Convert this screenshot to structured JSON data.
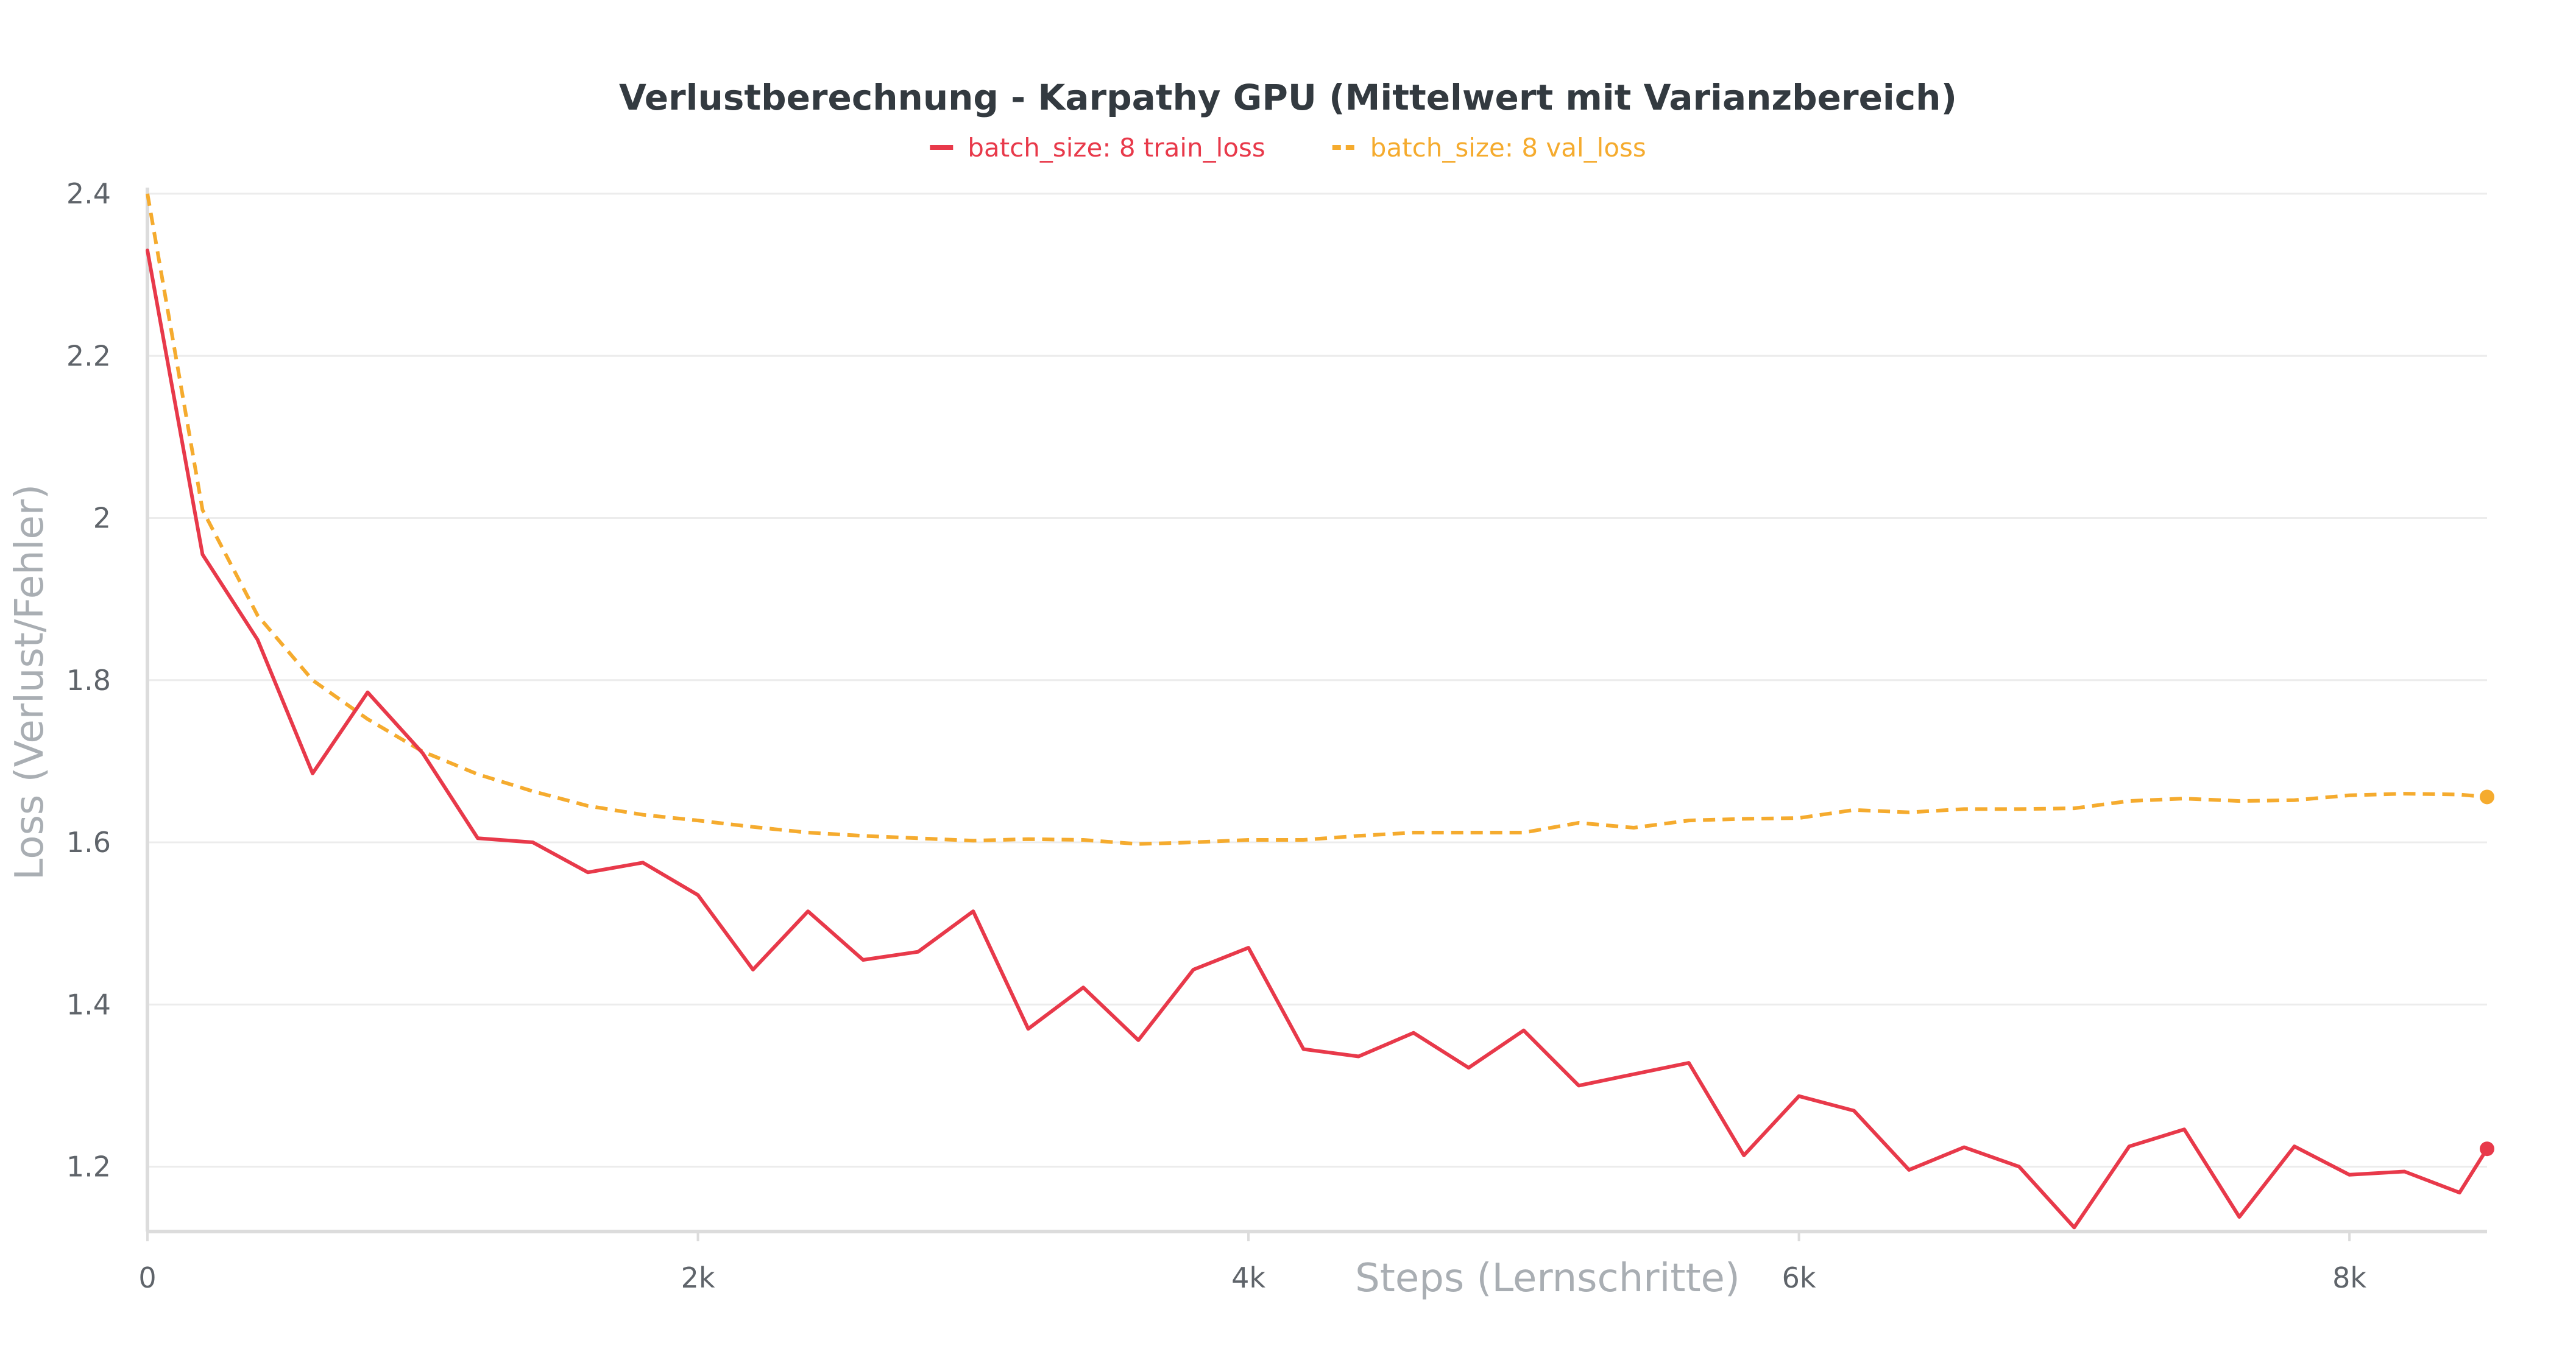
{
  "chart_data": {
    "type": "line",
    "title": "Verlustberechnung - Karpathy GPU (Mittelwert mit Varianzbereich)",
    "xlabel": "Steps (Lernschritte)",
    "ylabel": "Loss (Verlust/Fehler)",
    "xlim": [
      0,
      8500
    ],
    "ylim": [
      1.12,
      2.4
    ],
    "x_ticks": [
      {
        "value": 0,
        "label": "0"
      },
      {
        "value": 2000,
        "label": "2k"
      },
      {
        "value": 4000,
        "label": "4k"
      },
      {
        "value": 6000,
        "label": "6k"
      },
      {
        "value": 8000,
        "label": "8k"
      }
    ],
    "y_ticks": [
      {
        "value": 1.2,
        "label": "1.2"
      },
      {
        "value": 1.4,
        "label": "1.4"
      },
      {
        "value": 1.6,
        "label": "1.6"
      },
      {
        "value": 1.8,
        "label": "1.8"
      },
      {
        "value": 2.0,
        "label": "2"
      },
      {
        "value": 2.2,
        "label": "2.2"
      },
      {
        "value": 2.4,
        "label": "2.4"
      }
    ],
    "grid": true,
    "legend_position": "top-center",
    "series": [
      {
        "name": "batch_size: 8 train_loss",
        "color": "#e8394a",
        "style": "solid",
        "points": [
          [
            0,
            2.33
          ],
          [
            200,
            1.955
          ],
          [
            400,
            1.85
          ],
          [
            600,
            1.685
          ],
          [
            800,
            1.785
          ],
          [
            1000,
            1.71
          ],
          [
            1200,
            1.605
          ],
          [
            1400,
            1.6
          ],
          [
            1600,
            1.563
          ],
          [
            1800,
            1.575
          ],
          [
            2000,
            1.535
          ],
          [
            2200,
            1.443
          ],
          [
            2400,
            1.515
          ],
          [
            2600,
            1.455
          ],
          [
            2800,
            1.465
          ],
          [
            3000,
            1.515
          ],
          [
            3200,
            1.37
          ],
          [
            3400,
            1.421
          ],
          [
            3600,
            1.356
          ],
          [
            3800,
            1.443
          ],
          [
            4000,
            1.47
          ],
          [
            4200,
            1.345
          ],
          [
            4400,
            1.336
          ],
          [
            4600,
            1.365
          ],
          [
            4800,
            1.322
          ],
          [
            5000,
            1.368
          ],
          [
            5200,
            1.3
          ],
          [
            5400,
            1.314
          ],
          [
            5600,
            1.328
          ],
          [
            5800,
            1.214
          ],
          [
            6000,
            1.287
          ],
          [
            6200,
            1.269
          ],
          [
            6400,
            1.196
          ],
          [
            6600,
            1.224
          ],
          [
            6800,
            1.2
          ],
          [
            7000,
            1.125
          ],
          [
            7200,
            1.225
          ],
          [
            7400,
            1.246
          ],
          [
            7600,
            1.138
          ],
          [
            7800,
            1.225
          ],
          [
            8000,
            1.19
          ],
          [
            8200,
            1.194
          ],
          [
            8400,
            1.168
          ],
          [
            8500,
            1.222
          ]
        ]
      },
      {
        "name": "batch_size: 8 val_loss",
        "color": "#f5ab2e",
        "style": "dashed",
        "points": [
          [
            0,
            2.4
          ],
          [
            200,
            2.01
          ],
          [
            400,
            1.88
          ],
          [
            600,
            1.8
          ],
          [
            800,
            1.752
          ],
          [
            1000,
            1.712
          ],
          [
            1200,
            1.684
          ],
          [
            1400,
            1.663
          ],
          [
            1600,
            1.645
          ],
          [
            1800,
            1.634
          ],
          [
            2000,
            1.627
          ],
          [
            2200,
            1.619
          ],
          [
            2400,
            1.612
          ],
          [
            2600,
            1.608
          ],
          [
            2800,
            1.605
          ],
          [
            3000,
            1.602
          ],
          [
            3200,
            1.604
          ],
          [
            3400,
            1.603
          ],
          [
            3600,
            1.598
          ],
          [
            3800,
            1.6
          ],
          [
            4000,
            1.603
          ],
          [
            4200,
            1.603
          ],
          [
            4400,
            1.608
          ],
          [
            4600,
            1.612
          ],
          [
            4800,
            1.612
          ],
          [
            5000,
            1.612
          ],
          [
            5200,
            1.624
          ],
          [
            5400,
            1.618
          ],
          [
            5600,
            1.627
          ],
          [
            5800,
            1.629
          ],
          [
            6000,
            1.63
          ],
          [
            6200,
            1.64
          ],
          [
            6400,
            1.637
          ],
          [
            6600,
            1.641
          ],
          [
            6800,
            1.641
          ],
          [
            7000,
            1.642
          ],
          [
            7200,
            1.651
          ],
          [
            7400,
            1.654
          ],
          [
            7600,
            1.651
          ],
          [
            7800,
            1.652
          ],
          [
            8000,
            1.658
          ],
          [
            8200,
            1.66
          ],
          [
            8400,
            1.659
          ],
          [
            8500,
            1.656
          ]
        ]
      }
    ]
  },
  "colors": {
    "grid": "#ececec",
    "axis": "#dcdcdc"
  }
}
